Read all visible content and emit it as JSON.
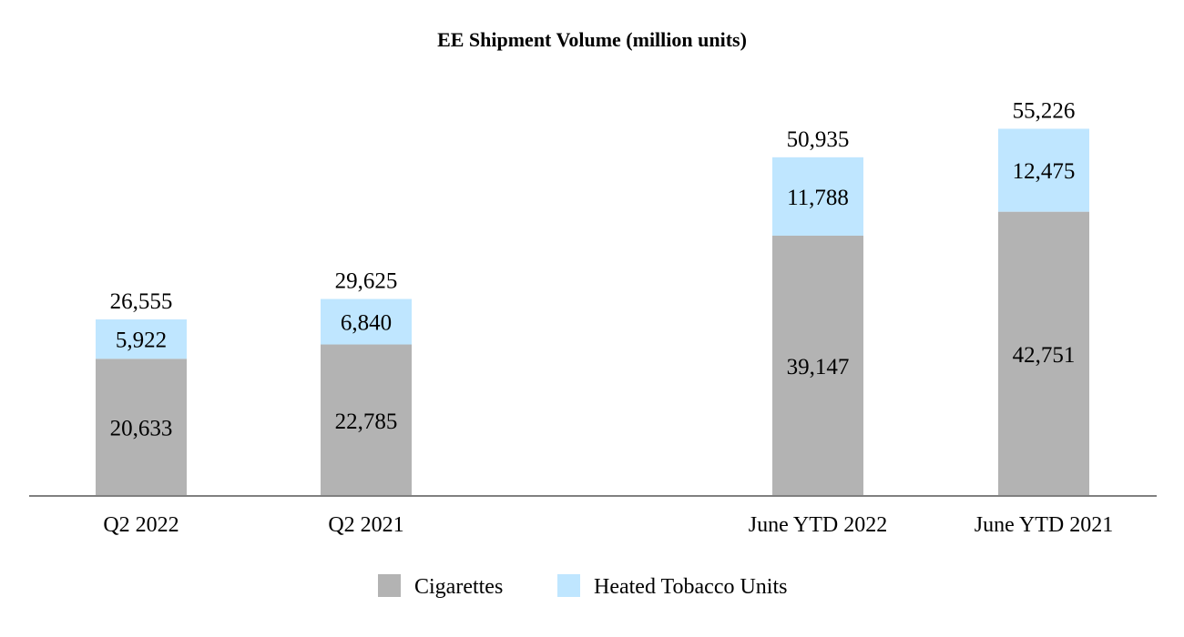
{
  "chart_data": {
    "type": "bar",
    "stacked": true,
    "title": "EE Shipment Volume (million units)",
    "xlabel": "",
    "ylabel": "",
    "categories": [
      "Q2 2022",
      "Q2 2021",
      "June YTD 2022",
      "June YTD 2021"
    ],
    "series": [
      {
        "name": "Cigarettes",
        "color": "#b3b3b3",
        "values": [
          20633,
          22785,
          39147,
          42751
        ],
        "labels": [
          "20,633",
          "22,785",
          "39,147",
          "42,751"
        ]
      },
      {
        "name": "Heated Tobacco Units",
        "color": "#bfe6ff",
        "values": [
          5922,
          6840,
          11788,
          12475
        ],
        "labels": [
          "5,922",
          "6,840",
          "11,788",
          "12,475"
        ]
      }
    ],
    "totals": [
      26555,
      29625,
      50935,
      55226
    ],
    "total_labels": [
      "26,555",
      "29,625",
      "50,935",
      "55,226"
    ],
    "ylim": [
      0,
      62000
    ],
    "grid": false,
    "legend": "bottom-center",
    "axis_color": "#808080"
  }
}
